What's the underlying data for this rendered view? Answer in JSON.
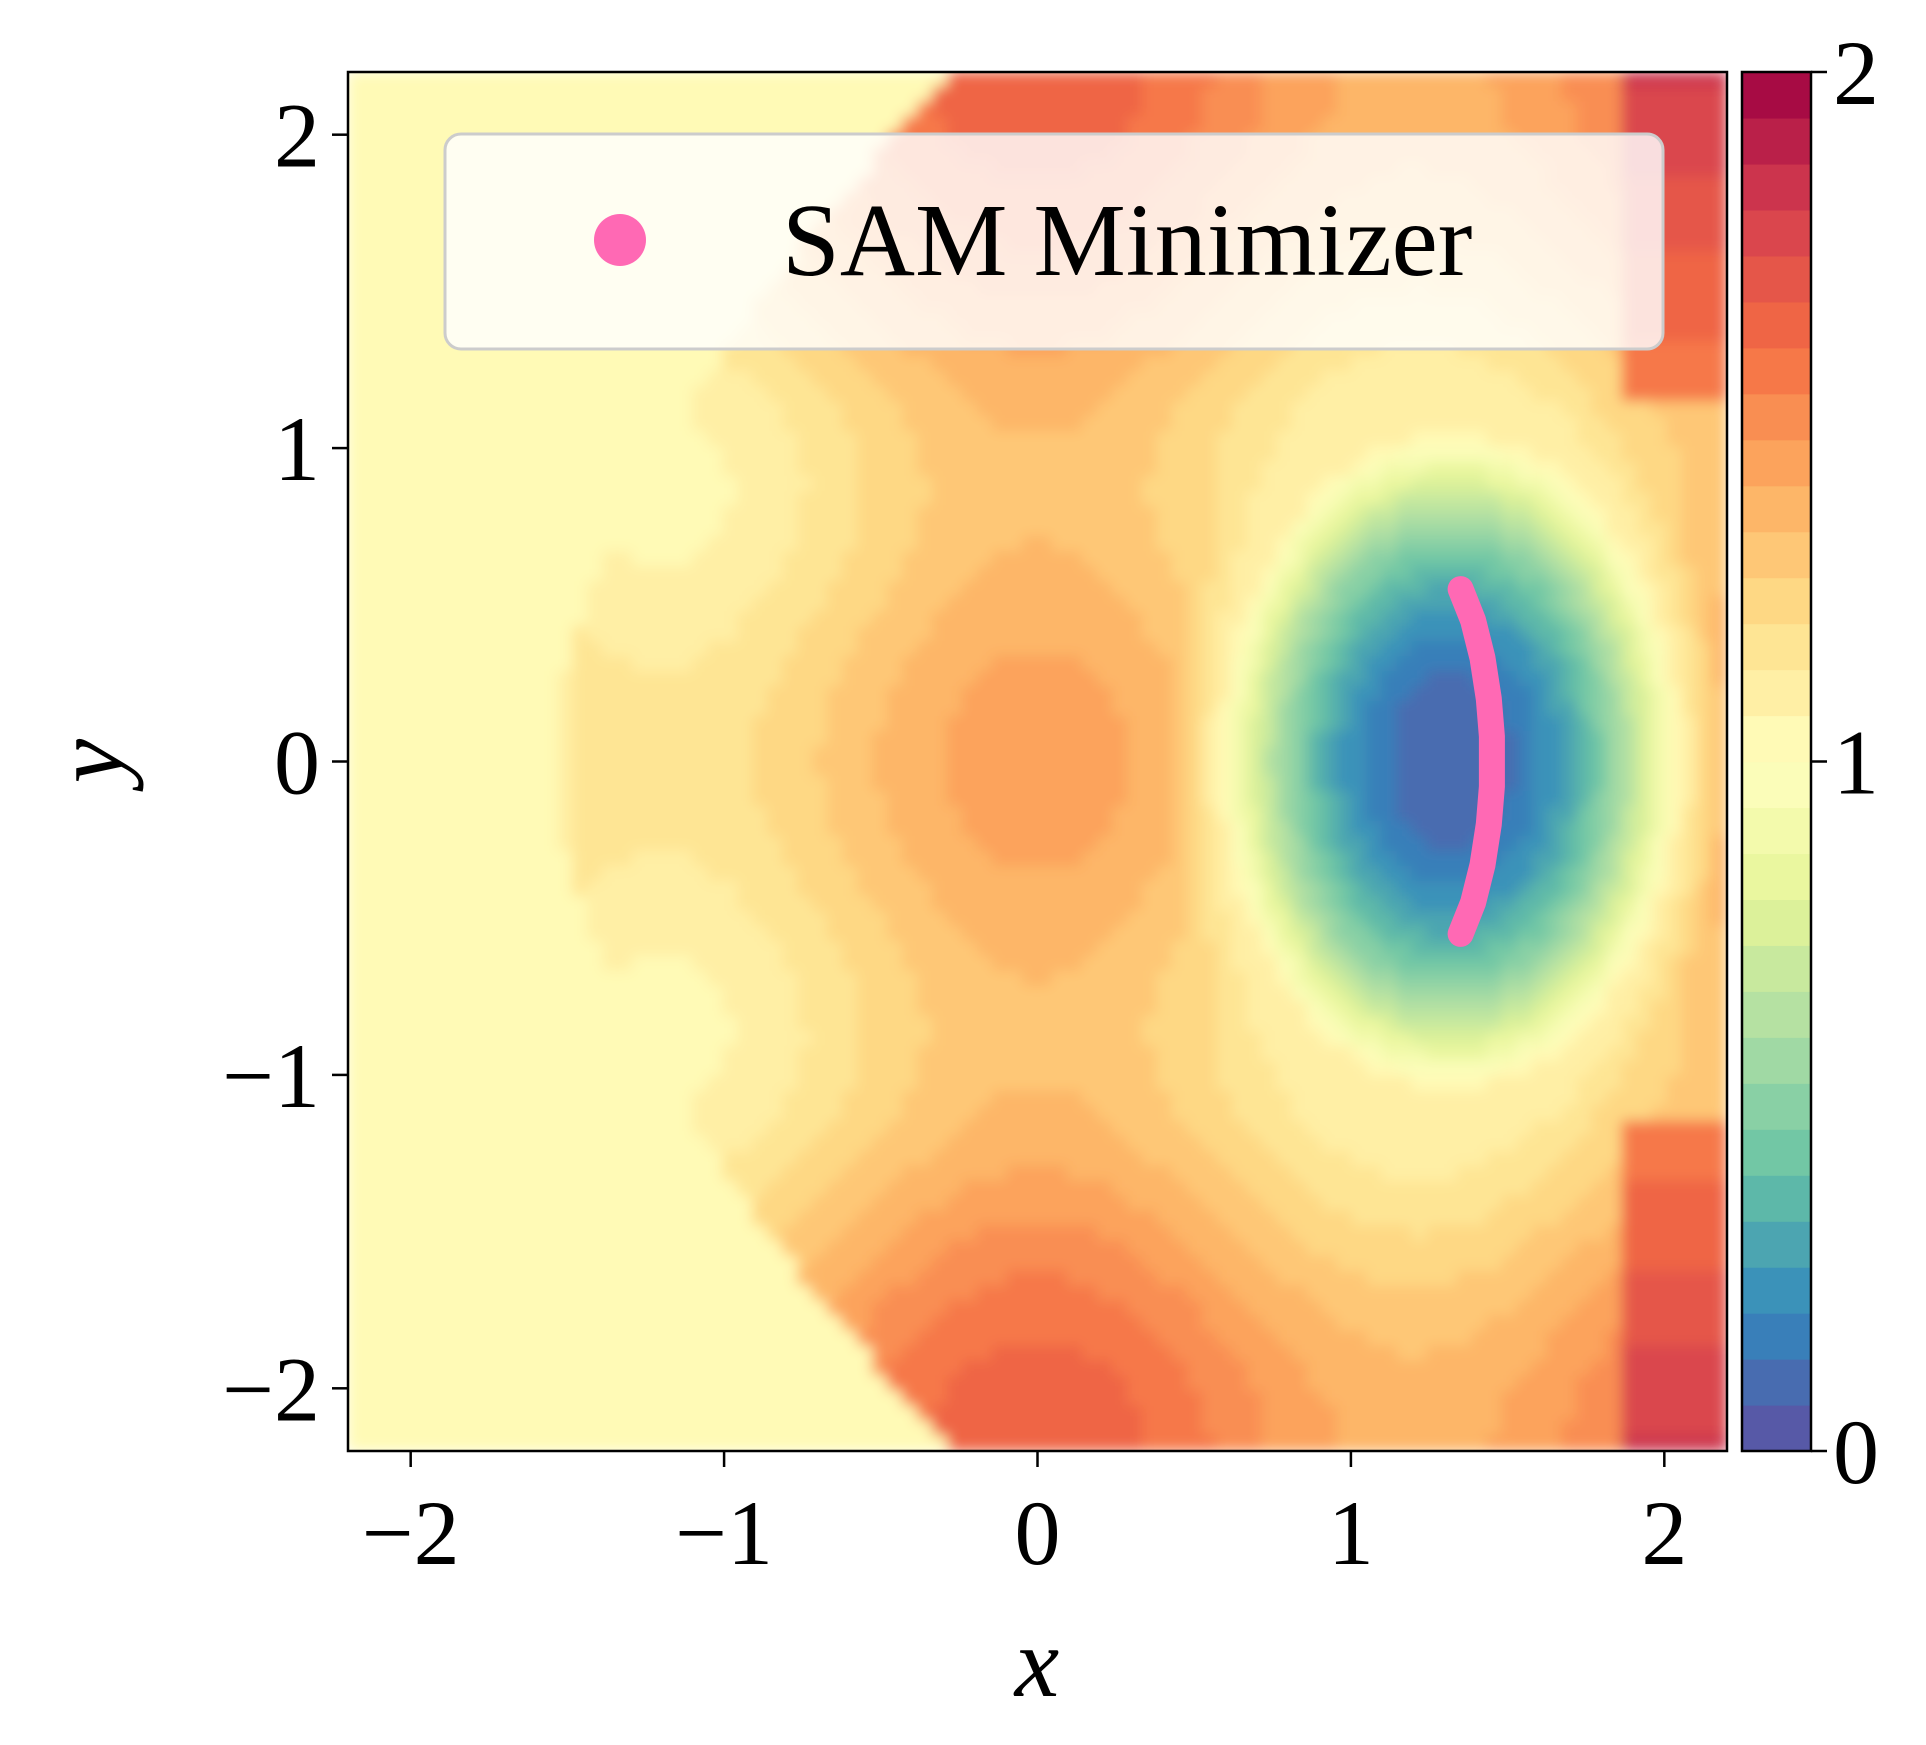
{
  "chart_data": {
    "type": "heatmap",
    "title": "",
    "xlabel": "x",
    "ylabel": "y",
    "xlim": [
      -2.2,
      2.2
    ],
    "ylim": [
      -2.2,
      2.2
    ],
    "xticks": [
      -2,
      -1,
      0,
      1,
      2
    ],
    "yticks": [
      -2,
      -1,
      0,
      1,
      2
    ],
    "xtick_labels": [
      "−2",
      "−1",
      "0",
      "1",
      "2"
    ],
    "ytick_labels": [
      "−2",
      "−1",
      "0",
      "1",
      "2"
    ],
    "colormap": "Spectral_r",
    "colorbar": {
      "range": [
        0,
        2
      ],
      "ticks": [
        0,
        1,
        2
      ],
      "tick_labels": [
        "0",
        "1",
        "2"
      ],
      "levels": 30
    },
    "legend": {
      "placement": "top-right",
      "entries": [
        {
          "label": "SAM Minimizer",
          "color": "#ff69b4",
          "marker": "circle"
        }
      ]
    },
    "series": [
      {
        "name": "SAM Minimizer",
        "type": "curve",
        "color": "#ff69b4",
        "points": [
          [
            1.35,
            -0.55
          ],
          [
            1.39,
            -0.45
          ],
          [
            1.42,
            -0.33
          ],
          [
            1.44,
            -0.2
          ],
          [
            1.45,
            -0.08
          ],
          [
            1.45,
            0.0
          ],
          [
            1.45,
            0.08
          ],
          [
            1.44,
            0.2
          ],
          [
            1.42,
            0.33
          ],
          [
            1.39,
            0.45
          ],
          [
            1.35,
            0.55
          ]
        ]
      }
    ],
    "grid": false
  }
}
